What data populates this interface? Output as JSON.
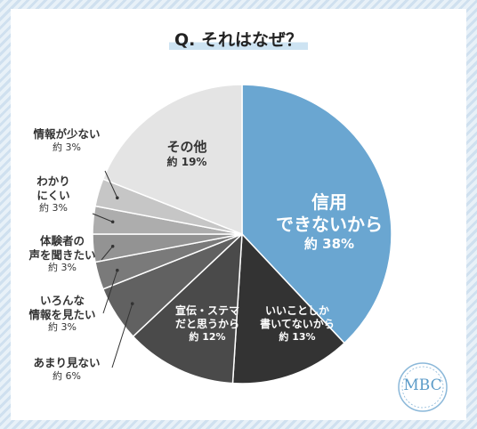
{
  "title": "Q. それはなぜ？",
  "logo_text": "MBC",
  "chart_data": {
    "type": "pie",
    "title": "Q. それはなぜ？",
    "slices": [
      {
        "label": "信用できないから",
        "value": 38,
        "pct_text": "約 38%",
        "color": "#6aa6d1"
      },
      {
        "label": "いいことしか書いてないから",
        "value": 13,
        "pct_text": "約 13%",
        "color": "#333333"
      },
      {
        "label": "宣伝・ステマだと思うから",
        "value": 12,
        "pct_text": "約 12%",
        "color": "#4a4a4a"
      },
      {
        "label": "あまり見ない",
        "value": 6,
        "pct_text": "約 6%",
        "color": "#616161"
      },
      {
        "label": "いろんな情報を見たい",
        "value": 3,
        "pct_text": "約 3%",
        "color": "#7a7a7a"
      },
      {
        "label": "体験者の声を聞きたい",
        "value": 3,
        "pct_text": "約 3%",
        "color": "#939393"
      },
      {
        "label": "わかりにくい",
        "value": 3,
        "pct_text": "約 3%",
        "color": "#adadad"
      },
      {
        "label": "情報が少ない",
        "value": 3,
        "pct_text": "約 3%",
        "color": "#c6c6c6"
      },
      {
        "label": "その他",
        "value": 19,
        "pct_text": "約 19%",
        "color": "#e4e4e4"
      }
    ],
    "display_labels": {
      "s0": [
        "信用",
        "できないから"
      ],
      "s1": [
        "いいことしか",
        "書いてないから"
      ],
      "s2": [
        "宣伝・ステマ",
        "だと思うから"
      ],
      "s3": [
        "あまり見ない"
      ],
      "s4": [
        "いろんな",
        "情報を見たい"
      ],
      "s5": [
        "体験者の",
        "声を聞きたい"
      ],
      "s6": [
        "わかり",
        "にくい"
      ],
      "s7": [
        "情報が少ない"
      ],
      "s8": [
        "その他"
      ]
    }
  }
}
